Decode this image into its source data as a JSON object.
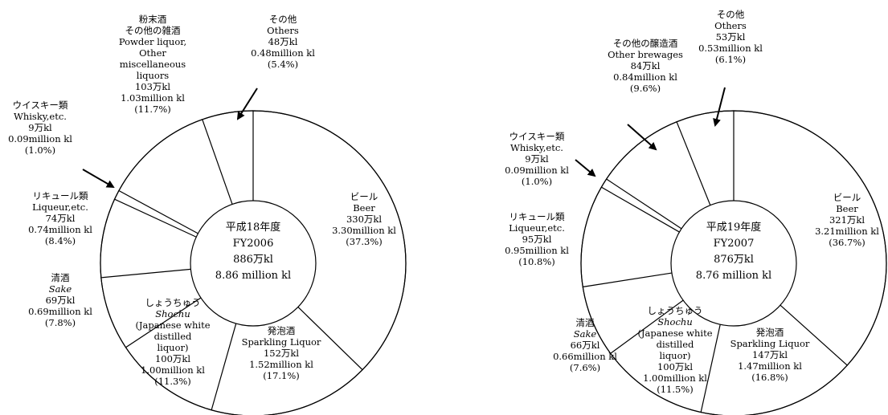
{
  "chart_data": [
    {
      "type": "pie",
      "center_label": [
        "平成18年度",
        "FY2006",
        "886万kl",
        "8.86 million kl"
      ],
      "slices": [
        {
          "name": "ビール",
          "name_en": "Beer",
          "value_man_kl": 330,
          "value_million_kl": 3.3,
          "percent": 37.3,
          "label_lines": [
            "ビール",
            "Beer",
            "330万kl",
            "3.30million kl",
            "(37.3%)"
          ]
        },
        {
          "name": "発泡酒",
          "name_en": "Sparkling Liquor",
          "value_man_kl": 152,
          "value_million_kl": 1.52,
          "percent": 17.1,
          "label_lines": [
            "発泡酒",
            "Sparkling Liquor",
            "152万kl",
            "1.52million kl",
            "(17.1%)"
          ]
        },
        {
          "name": "しょうちゅう",
          "name_en": "Shochu",
          "value_man_kl": 100,
          "value_million_kl": 1.0,
          "percent": 11.3,
          "label_lines": [
            "しょうちゅう",
            "Shochu",
            "(Japanese white",
            "distilled",
            "liquor)",
            "100万kl",
            "1.00million kl",
            "(11.3%)"
          ]
        },
        {
          "name": "清酒",
          "name_en": "Sake",
          "value_man_kl": 69,
          "value_million_kl": 0.69,
          "percent": 7.8,
          "label_lines": [
            "清酒",
            "Sake",
            "69万kl",
            "0.69million kl",
            "(7.8%)"
          ]
        },
        {
          "name": "リキュール類",
          "name_en": "Liqueur,etc.",
          "value_man_kl": 74,
          "value_million_kl": 0.74,
          "percent": 8.4,
          "label_lines": [
            "リキュール類",
            "Liqueur,etc.",
            "74万kl",
            "0.74million kl",
            "(8.4%)"
          ]
        },
        {
          "name": "ウイスキー類",
          "name_en": "Whisky,etc.",
          "value_man_kl": 9,
          "value_million_kl": 0.09,
          "percent": 1.0,
          "label_lines": [
            "ウイスキー類",
            "Whisky,etc.",
            "9万kl",
            "0.09million kl",
            "(1.0%)"
          ]
        },
        {
          "name": "粉末酒 その他の雑酒",
          "name_en": "Powder liquor, Other miscellaneous liquors",
          "value_man_kl": 103,
          "value_million_kl": 1.03,
          "percent": 11.7,
          "label_lines": [
            "粉末酒",
            "その他の雑酒",
            "Powder liquor,",
            "Other",
            "miscellaneous",
            "liquors",
            "103万kl",
            "1.03million kl",
            "(11.7%)"
          ]
        },
        {
          "name": "その他",
          "name_en": "Others",
          "value_man_kl": 48,
          "value_million_kl": 0.48,
          "percent": 5.4,
          "label_lines": [
            "その他",
            "Others",
            "48万kl",
            "0.48million kl",
            "(5.4%)"
          ]
        }
      ]
    },
    {
      "type": "pie",
      "center_label": [
        "平成19年度",
        "FY2007",
        "876万kl",
        "8.76 million kl"
      ],
      "slices": [
        {
          "name": "ビール",
          "name_en": "Beer",
          "value_man_kl": 321,
          "value_million_kl": 3.21,
          "percent": 36.7,
          "label_lines": [
            "ビール",
            "Beer",
            "321万kl",
            "3.21million kl",
            "(36.7%)"
          ]
        },
        {
          "name": "発泡酒",
          "name_en": "Sparkling Liquor",
          "value_man_kl": 147,
          "value_million_kl": 1.47,
          "percent": 16.8,
          "label_lines": [
            "発泡酒",
            "Sparkling Liquor",
            "147万kl",
            "1.47million kl",
            "(16.8%)"
          ]
        },
        {
          "name": "しょうちゅう",
          "name_en": "Shochu",
          "value_man_kl": 100,
          "value_million_kl": 1.0,
          "percent": 11.5,
          "label_lines": [
            "しょうちゅう",
            "Shochu",
            "(Japanese white",
            "distilled",
            "liquor)",
            "100万kl",
            "1.00million kl",
            "(11.5%)"
          ]
        },
        {
          "name": "清酒",
          "name_en": "Sake",
          "value_man_kl": 66,
          "value_million_kl": 0.66,
          "percent": 7.6,
          "label_lines": [
            "清酒",
            "Sake",
            "66万kl",
            "0.66million kl",
            "(7.6%)"
          ]
        },
        {
          "name": "リキュール類",
          "name_en": "Liqueur,etc.",
          "value_man_kl": 95,
          "value_million_kl": 0.95,
          "percent": 10.8,
          "label_lines": [
            "リキュール類",
            "Liqueur,etc.",
            "95万kl",
            "0.95million kl",
            "(10.8%)"
          ]
        },
        {
          "name": "ウイスキー類",
          "name_en": "Whisky,etc.",
          "value_man_kl": 9,
          "value_million_kl": 0.09,
          "percent": 1.0,
          "label_lines": [
            "ウイスキー類",
            "Whisky,etc.",
            "9万kl",
            "0.09million kl",
            "(1.0%)"
          ]
        },
        {
          "name": "その他の醸造酒",
          "name_en": "Other brewages",
          "value_man_kl": 84,
          "value_million_kl": 0.84,
          "percent": 9.6,
          "label_lines": [
            "その他の醸造酒",
            "Other brewages",
            "84万kl",
            "0.84million kl",
            "(9.6%)"
          ]
        },
        {
          "name": "その他",
          "name_en": "Others",
          "value_man_kl": 53,
          "value_million_kl": 0.53,
          "percent": 6.1,
          "label_lines": [
            "その他",
            "Others",
            "53万kl",
            "0.53million kl",
            "(6.1%)"
          ]
        }
      ]
    }
  ]
}
